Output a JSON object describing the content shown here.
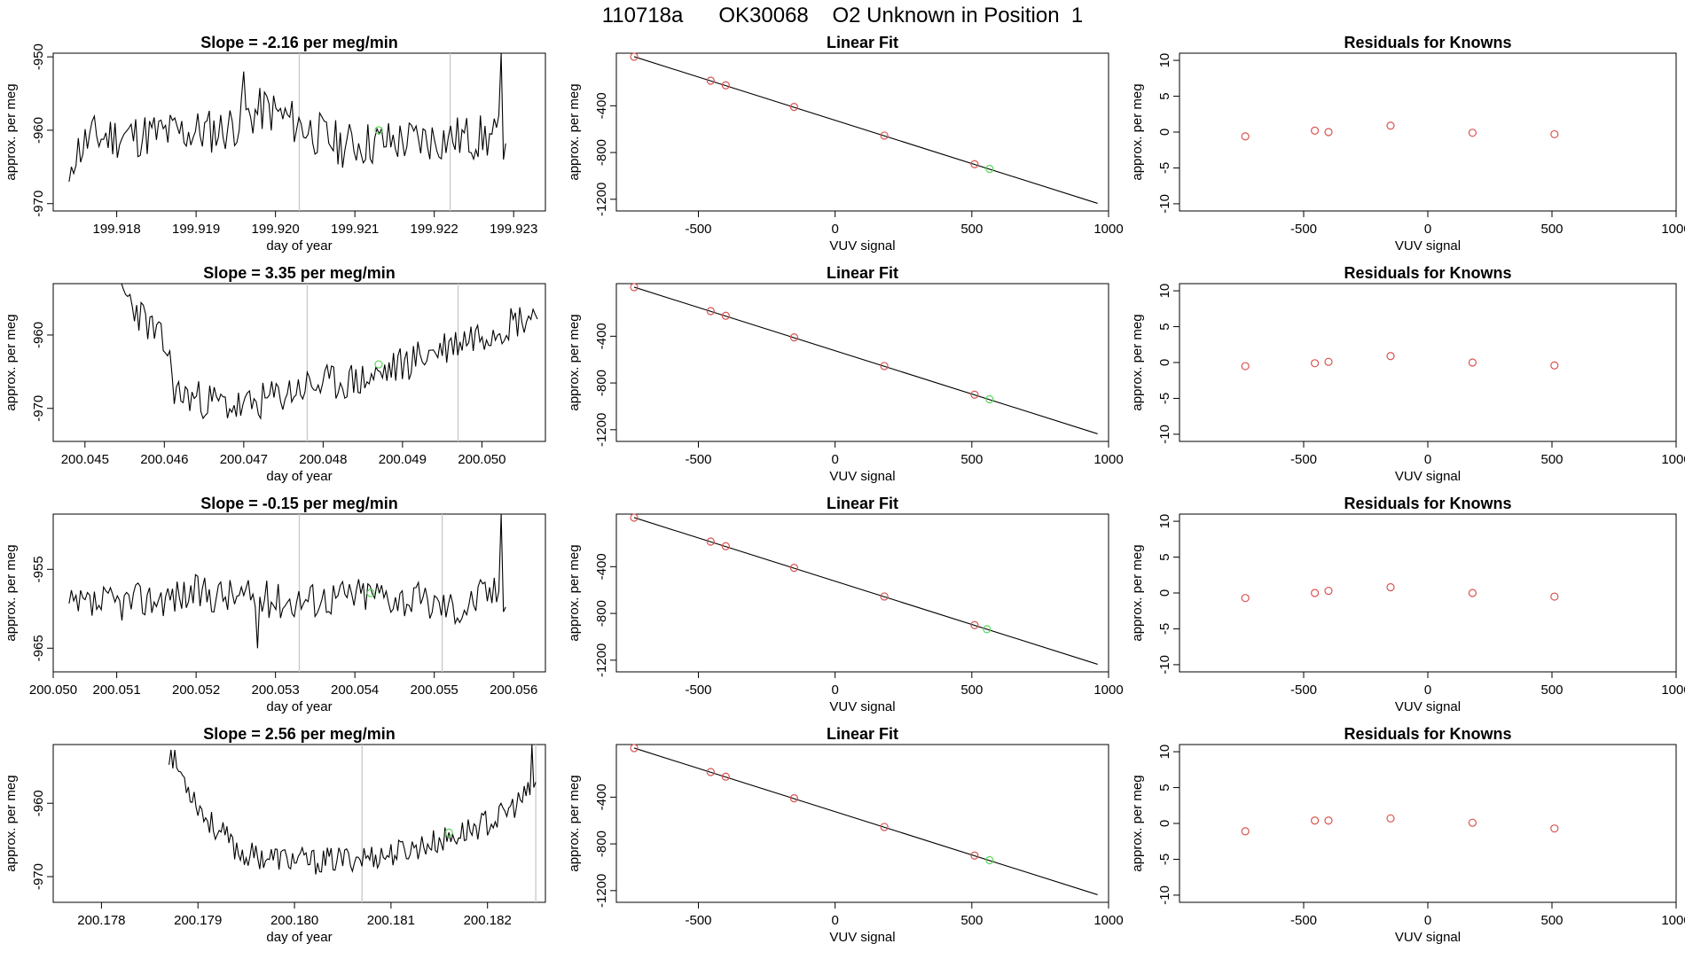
{
  "page_title": "110718a      OK30068    O2 Unknown in Position  1",
  "colors": {
    "line": "#000000",
    "known_point": "#d9534f",
    "unknown_point": "#5cd65c",
    "vline": "#c8c8c8",
    "axis": "#000000"
  },
  "chart_data": [
    {
      "type": "line",
      "row": 0,
      "col": 0,
      "title": "Slope =  -2.16  per meg/min",
      "xlabel": "day of year",
      "ylabel": "approx. per meg",
      "xlim": [
        199.9172,
        199.9234
      ],
      "ylim": [
        -971,
        -949.5
      ],
      "xticks": [
        199.918,
        199.919,
        199.92,
        199.921,
        199.922,
        199.923
      ],
      "xtick_labels": [
        "199.918",
        "199.919",
        "199.920",
        "199.921",
        "199.922",
        "199.923"
      ],
      "yticks": [
        -970,
        -960,
        -950
      ],
      "ytick_labels": [
        "-970",
        "-960",
        "-950"
      ],
      "vlines": [
        199.9203,
        199.9222
      ],
      "x_start": 199.9174,
      "x_end": 199.9229,
      "baseline": -961,
      "noise": 3.2,
      "drift": [
        [
          0,
          -964
        ],
        [
          0.05,
          -961
        ],
        [
          0.35,
          -960
        ],
        [
          0.45,
          -957
        ],
        [
          0.62,
          -962
        ],
        [
          0.9,
          -961
        ],
        [
          0.97,
          -961
        ]
      ],
      "spikes": [
        [
          0.0,
          -967
        ],
        [
          0.4,
          -952
        ],
        [
          0.99,
          -949.5
        ]
      ],
      "seed": 11,
      "marker": [
        199.9213,
        -960
      ],
      "values_note": "noisy trace around -960 per meg"
    },
    {
      "type": "line",
      "row": 1,
      "col": 0,
      "title": "Slope =  3.35  per meg/min",
      "xlabel": "day of year",
      "ylabel": "approx. per meg",
      "xlim": [
        200.0446,
        200.0508
      ],
      "ylim": [
        -974.5,
        -953
      ],
      "xticks": [
        200.045,
        200.046,
        200.047,
        200.048,
        200.049,
        200.05
      ],
      "xtick_labels": [
        "200.045",
        "200.046",
        "200.047",
        "200.048",
        "200.049",
        "200.050"
      ],
      "yticks": [
        -970,
        -960
      ],
      "ytick_labels": [
        "-970",
        "-960"
      ],
      "vlines": [
        200.0478,
        200.0497
      ],
      "x_start": 200.0454,
      "x_end": 200.0507,
      "baseline": -966,
      "noise": 2.6,
      "drift": [
        [
          0,
          -953
        ],
        [
          0.12,
          -962
        ],
        [
          0.14,
          -968
        ],
        [
          0.3,
          -970
        ],
        [
          0.45,
          -967
        ],
        [
          0.6,
          -966
        ],
        [
          0.72,
          -963
        ],
        [
          0.85,
          -960
        ],
        [
          1.0,
          -957
        ]
      ],
      "spikes": [],
      "seed": 23,
      "marker": [
        200.0487,
        -964
      ],
      "values_note": "rising trace from about -970 to -957 per meg"
    },
    {
      "type": "line",
      "row": 2,
      "col": 0,
      "title": "Slope =  -0.15  per meg/min",
      "xlabel": "day of year",
      "ylabel": "approx. per meg",
      "xlim": [
        200.0502,
        200.0564
      ],
      "ylim": [
        -968,
        -948
      ],
      "xticks": [
        200.0502,
        200.051,
        200.052,
        200.053,
        200.054,
        200.055,
        200.056
      ],
      "xtick_labels": [
        "200.050",
        "200.051",
        "200.052",
        "200.053",
        "200.054",
        "200.055",
        "200.056"
      ],
      "yticks": [
        -965,
        -955
      ],
      "ytick_labels": [
        "-965",
        "-955"
      ],
      "vlines": [
        200.0533,
        200.0551
      ],
      "x_start": 200.0504,
      "x_end": 200.0559,
      "baseline": -959,
      "noise": 2.4,
      "drift": [
        [
          0,
          -960
        ],
        [
          0.3,
          -958
        ],
        [
          0.5,
          -959
        ],
        [
          0.7,
          -958
        ],
        [
          0.9,
          -960
        ],
        [
          0.95,
          -958
        ]
      ],
      "spikes": [
        [
          0.43,
          -965
        ],
        [
          0.99,
          -948
        ]
      ],
      "seed": 37,
      "marker": [
        200.0542,
        -958
      ],
      "values_note": "flat noisy trace around -959 per meg"
    },
    {
      "type": "line",
      "row": 3,
      "col": 0,
      "title": "Slope =  2.56  per meg/min",
      "xlabel": "day of year",
      "ylabel": "approx. per meg",
      "xlim": [
        200.1775,
        200.1826
      ],
      "ylim": [
        -973.5,
        -952
      ],
      "xticks": [
        200.178,
        200.179,
        200.18,
        200.181,
        200.182
      ],
      "xtick_labels": [
        "200.178",
        "200.179",
        "200.180",
        "200.181",
        "200.182"
      ],
      "yticks": [
        -970,
        -960
      ],
      "ytick_labels": [
        "-970",
        "-960"
      ],
      "vlines": [
        200.1807,
        200.1825
      ],
      "x_start": 200.1787,
      "x_end": 200.1825,
      "baseline": -967,
      "noise": 1.8,
      "drift": [
        [
          0,
          -953
        ],
        [
          0.1,
          -962
        ],
        [
          0.2,
          -967
        ],
        [
          0.4,
          -968
        ],
        [
          0.6,
          -967
        ],
        [
          0.75,
          -965
        ],
        [
          0.9,
          -962
        ],
        [
          1.0,
          -958
        ]
      ],
      "spikes": [
        [
          0.55,
          -973
        ],
        [
          0.99,
          -952
        ]
      ],
      "seed": 53,
      "marker": [
        200.1816,
        -964
      ],
      "values_note": "trace dipping to about -968 then rising"
    },
    {
      "type": "scatter",
      "row": 0,
      "col": 1,
      "title": "Linear Fit",
      "xlabel": "VUV signal",
      "ylabel": "approx. per meg",
      "xlim": [
        -800,
        1000
      ],
      "ylim": [
        -1300,
        50
      ],
      "xticks": [
        -500,
        0,
        500,
        1000
      ],
      "xtick_labels": [
        "-500",
        "0",
        "500",
        "1000"
      ],
      "yticks": [
        -1200,
        -800,
        -400
      ],
      "ytick_labels": [
        "-1200",
        "-800",
        "-400"
      ],
      "fit_line": [
        [
          -735,
          20
        ],
        [
          960,
          -1235
        ]
      ],
      "knowns": [
        [
          -735,
          20
        ],
        [
          -455,
          -185
        ],
        [
          -400,
          -225
        ],
        [
          -150,
          -410
        ],
        [
          180,
          -655
        ],
        [
          510,
          -900
        ]
      ],
      "unknown": [
        [
          565,
          -940
        ]
      ]
    },
    {
      "type": "scatter",
      "row": 1,
      "col": 1,
      "title": "Linear Fit",
      "xlabel": "VUV signal",
      "ylabel": "approx. per meg",
      "xlim": [
        -800,
        1000
      ],
      "ylim": [
        -1300,
        50
      ],
      "xticks": [
        -500,
        0,
        500,
        1000
      ],
      "xtick_labels": [
        "-500",
        "0",
        "500",
        "1000"
      ],
      "yticks": [
        -1200,
        -800,
        -400
      ],
      "ytick_labels": [
        "-1200",
        "-800",
        "-400"
      ],
      "fit_line": [
        [
          -735,
          20
        ],
        [
          960,
          -1235
        ]
      ],
      "knowns": [
        [
          -735,
          20
        ],
        [
          -455,
          -185
        ],
        [
          -400,
          -225
        ],
        [
          -150,
          -410
        ],
        [
          180,
          -655
        ],
        [
          510,
          -900
        ]
      ],
      "unknown": [
        [
          565,
          -940
        ]
      ]
    },
    {
      "type": "scatter",
      "row": 2,
      "col": 1,
      "title": "Linear Fit",
      "xlabel": "VUV signal",
      "ylabel": "approx. per meg",
      "xlim": [
        -800,
        1000
      ],
      "ylim": [
        -1300,
        50
      ],
      "xticks": [
        -500,
        0,
        500,
        1000
      ],
      "xtick_labels": [
        "-500",
        "0",
        "500",
        "1000"
      ],
      "yticks": [
        -1200,
        -800,
        -400
      ],
      "ytick_labels": [
        "-1200",
        "-800",
        "-400"
      ],
      "fit_line": [
        [
          -735,
          20
        ],
        [
          960,
          -1235
        ]
      ],
      "knowns": [
        [
          -735,
          20
        ],
        [
          -455,
          -185
        ],
        [
          -400,
          -225
        ],
        [
          -150,
          -410
        ],
        [
          180,
          -655
        ],
        [
          510,
          -900
        ]
      ],
      "unknown": [
        [
          555,
          -935
        ]
      ]
    },
    {
      "type": "scatter",
      "row": 3,
      "col": 1,
      "title": "Linear Fit",
      "xlabel": "VUV signal",
      "ylabel": "approx. per meg",
      "xlim": [
        -800,
        1000
      ],
      "ylim": [
        -1300,
        50
      ],
      "xticks": [
        -500,
        0,
        500,
        1000
      ],
      "xtick_labels": [
        "-500",
        "0",
        "500",
        "1000"
      ],
      "yticks": [
        -1200,
        -800,
        -400
      ],
      "ytick_labels": [
        "-1200",
        "-800",
        "-400"
      ],
      "fit_line": [
        [
          -735,
          20
        ],
        [
          960,
          -1235
        ]
      ],
      "knowns": [
        [
          -735,
          20
        ],
        [
          -455,
          -185
        ],
        [
          -400,
          -225
        ],
        [
          -150,
          -410
        ],
        [
          180,
          -655
        ],
        [
          510,
          -900
        ]
      ],
      "unknown": [
        [
          565,
          -940
        ]
      ]
    },
    {
      "type": "scatter",
      "row": 0,
      "col": 2,
      "title": "Residuals for Knowns",
      "xlabel": "VUV signal",
      "ylabel": "approx. per meg",
      "xlim": [
        -1000,
        1000
      ],
      "ylim": [
        -11,
        11
      ],
      "xticks": [
        -500,
        0,
        500,
        1000
      ],
      "xtick_labels": [
        "-500",
        "0",
        "500",
        "1000"
      ],
      "yticks": [
        -10,
        -5,
        0,
        5,
        10
      ],
      "ytick_labels": [
        "-10",
        "-5",
        "0",
        "5",
        "10"
      ],
      "knowns": [
        [
          -735,
          -0.6
        ],
        [
          -455,
          0.2
        ],
        [
          -400,
          0.0
        ],
        [
          -150,
          0.9
        ],
        [
          180,
          -0.1
        ],
        [
          510,
          -0.3
        ]
      ]
    },
    {
      "type": "scatter",
      "row": 1,
      "col": 2,
      "title": "Residuals for Knowns",
      "xlabel": "VUV signal",
      "ylabel": "approx. per meg",
      "xlim": [
        -1000,
        1000
      ],
      "ylim": [
        -11,
        11
      ],
      "xticks": [
        -500,
        0,
        500,
        1000
      ],
      "xtick_labels": [
        "-500",
        "0",
        "500",
        "1000"
      ],
      "yticks": [
        -10,
        -5,
        0,
        5,
        10
      ],
      "ytick_labels": [
        "-10",
        "-5",
        "0",
        "5",
        "10"
      ],
      "knowns": [
        [
          -735,
          -0.5
        ],
        [
          -455,
          -0.1
        ],
        [
          -400,
          0.1
        ],
        [
          -150,
          0.9
        ],
        [
          180,
          0.0
        ],
        [
          510,
          -0.4
        ]
      ]
    },
    {
      "type": "scatter",
      "row": 2,
      "col": 2,
      "title": "Residuals for Knowns",
      "xlabel": "VUV signal",
      "ylabel": "approx. per meg",
      "xlim": [
        -1000,
        1000
      ],
      "ylim": [
        -11,
        11
      ],
      "xticks": [
        -500,
        0,
        500,
        1000
      ],
      "xtick_labels": [
        "-500",
        "0",
        "500",
        "1000"
      ],
      "yticks": [
        -10,
        -5,
        0,
        5,
        10
      ],
      "ytick_labels": [
        "-10",
        "-5",
        "0",
        "5",
        "10"
      ],
      "knowns": [
        [
          -735,
          -0.7
        ],
        [
          -455,
          0.0
        ],
        [
          -400,
          0.3
        ],
        [
          -150,
          0.8
        ],
        [
          180,
          0.0
        ],
        [
          510,
          -0.5
        ]
      ]
    },
    {
      "type": "scatter",
      "row": 3,
      "col": 2,
      "title": "Residuals for Knowns",
      "xlabel": "VUV signal",
      "ylabel": "approx. per meg",
      "xlim": [
        -1000,
        1000
      ],
      "ylim": [
        -11,
        11
      ],
      "xticks": [
        -500,
        0,
        500,
        1000
      ],
      "xtick_labels": [
        "-500",
        "0",
        "500",
        "1000"
      ],
      "yticks": [
        -10,
        -5,
        0,
        5,
        10
      ],
      "ytick_labels": [
        "-10",
        "-5",
        "0",
        "5",
        "10"
      ],
      "knowns": [
        [
          -735,
          -1.1
        ],
        [
          -455,
          0.4
        ],
        [
          -400,
          0.4
        ],
        [
          -150,
          0.7
        ],
        [
          180,
          0.1
        ],
        [
          510,
          -0.7
        ]
      ]
    }
  ]
}
